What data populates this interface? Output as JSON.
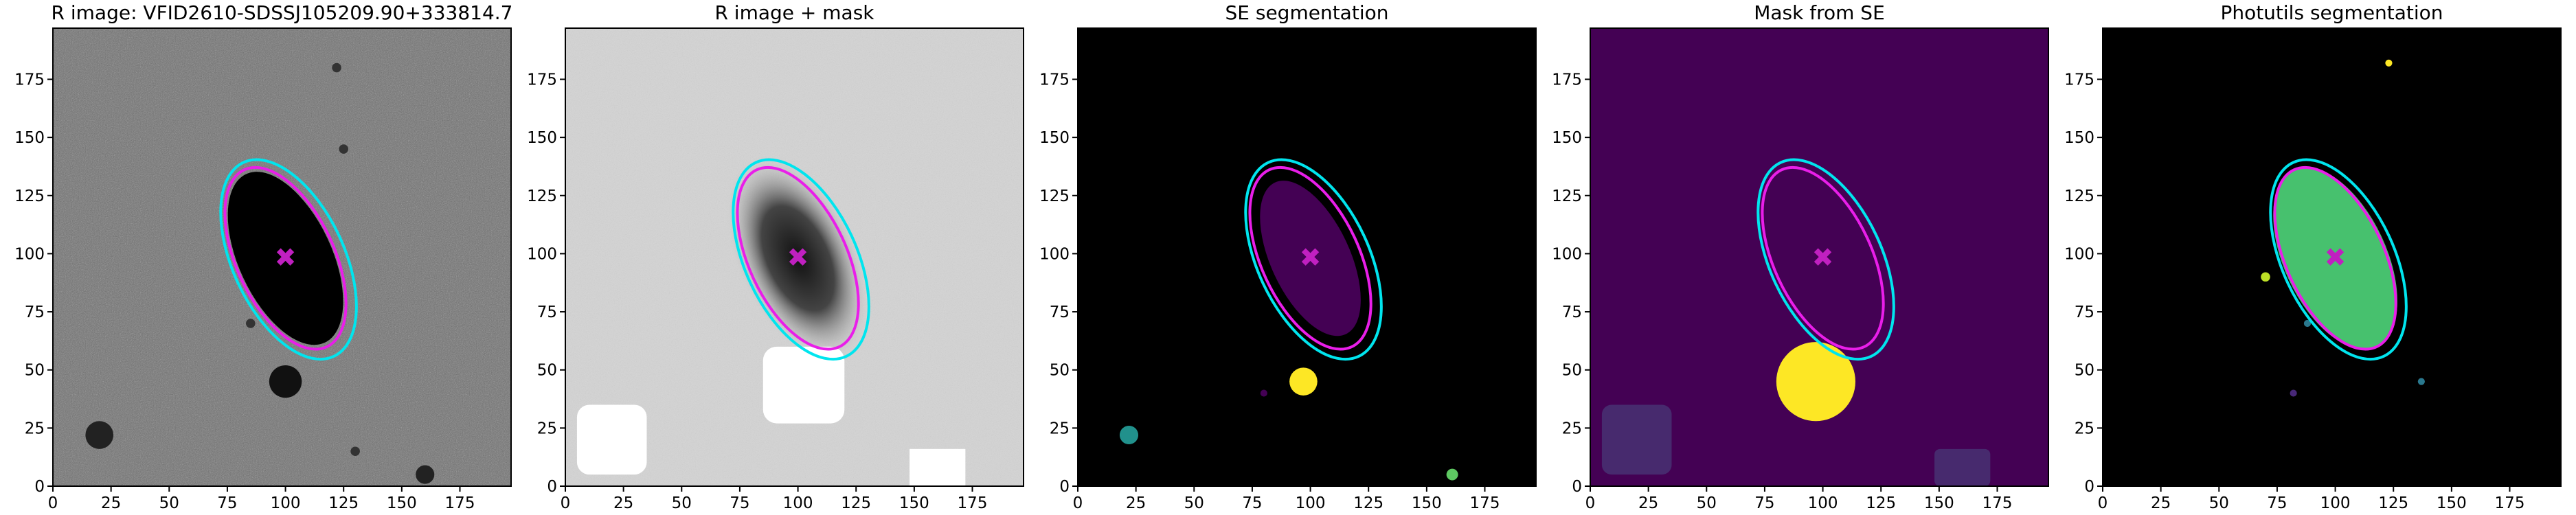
{
  "chart_data": [
    {
      "type": "image",
      "title": "R image: VFID2610-SDSSJ105209.90+333814.7",
      "background": "#6e6e6e",
      "xlim": [
        0,
        197
      ],
      "ylim": [
        0,
        197
      ],
      "xticks": [
        0,
        25,
        50,
        75,
        100,
        125,
        150,
        175
      ],
      "yticks": [
        0,
        25,
        50,
        75,
        100,
        125,
        150,
        175
      ]
    },
    {
      "type": "image",
      "title": "R image + mask",
      "background": "#d4d4d4",
      "xlim": [
        0,
        197
      ],
      "ylim": [
        0,
        197
      ],
      "xticks": [
        0,
        25,
        50,
        75,
        100,
        125,
        150,
        175
      ],
      "yticks": [
        0,
        25,
        50,
        75,
        100,
        125,
        150,
        175
      ]
    },
    {
      "type": "image",
      "title": "SE segmentation",
      "background": "#000000",
      "xlim": [
        0,
        197
      ],
      "ylim": [
        0,
        197
      ],
      "xticks": [
        0,
        25,
        50,
        75,
        100,
        125,
        150,
        175
      ],
      "yticks": [
        0,
        25,
        50,
        75,
        100,
        125,
        150,
        175
      ]
    },
    {
      "type": "image",
      "title": "Mask from SE",
      "background": "#440154",
      "xlim": [
        0,
        197
      ],
      "ylim": [
        0,
        197
      ],
      "xticks": [
        0,
        25,
        50,
        75,
        100,
        125,
        150,
        175
      ],
      "yticks": [
        0,
        25,
        50,
        75,
        100,
        125,
        150,
        175
      ]
    },
    {
      "type": "image",
      "title": "Photutils segmentation",
      "background": "#000000",
      "xlim": [
        0,
        197
      ],
      "ylim": [
        0,
        197
      ],
      "xticks": [
        0,
        25,
        50,
        75,
        100,
        125,
        150,
        175
      ],
      "yticks": [
        0,
        25,
        50,
        75,
        100,
        125,
        150,
        175
      ]
    }
  ]
}
